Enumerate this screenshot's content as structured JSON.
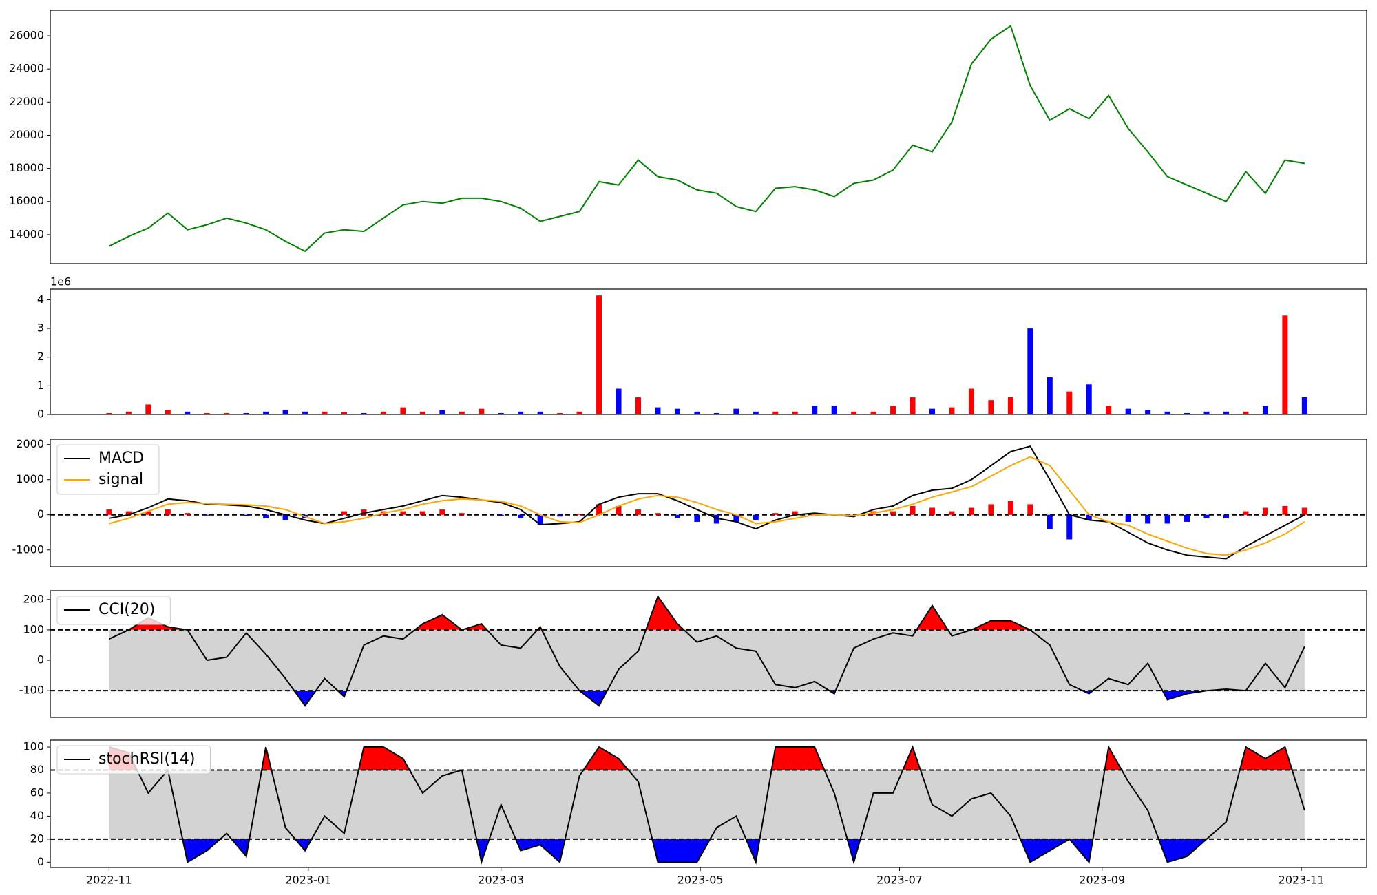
{
  "chart_data": [
    {
      "type": "line",
      "x": [
        0,
        6,
        12,
        18,
        24,
        30,
        36,
        42,
        48,
        54,
        60,
        66,
        72,
        78,
        84,
        90,
        96,
        102,
        108,
        114,
        120,
        126,
        132,
        138,
        144,
        150,
        156,
        162,
        168,
        174,
        180,
        186,
        192,
        198,
        204,
        210,
        216,
        222,
        228,
        234,
        240,
        246,
        252,
        258,
        264,
        270,
        276,
        282,
        288,
        294,
        300,
        306,
        312,
        318,
        324,
        330,
        336,
        342,
        348,
        354,
        360,
        366
      ],
      "xlim": [
        -18,
        385
      ],
      "ylim": [
        12250,
        27540
      ],
      "yticks": [
        14000,
        16000,
        18000,
        20000,
        22000,
        24000,
        26000
      ],
      "series": [
        {
          "color": "#008000",
          "values": [
            13300,
            13900,
            14400,
            15300,
            14300,
            14600,
            15000,
            14700,
            14300,
            13600,
            13000,
            14100,
            14300,
            14200,
            15000,
            15800,
            16000,
            15900,
            16200,
            16200,
            16000,
            15600,
            14800,
            15100,
            15400,
            17200,
            17000,
            18500,
            17500,
            17300,
            16700,
            16500,
            15700,
            15400,
            16800,
            16900,
            16700,
            16300,
            17100,
            17300,
            17900,
            19400,
            19000,
            20800,
            24300,
            25800,
            26600,
            23000,
            20900,
            21600,
            21000,
            22400,
            20400,
            19000,
            17500,
            17000,
            16500,
            16000,
            17800,
            16500,
            18500,
            18300
          ]
        }
      ]
    },
    {
      "type": "bar",
      "x": [
        0,
        6,
        12,
        18,
        24,
        30,
        36,
        42,
        48,
        54,
        60,
        66,
        72,
        78,
        84,
        90,
        96,
        102,
        108,
        114,
        120,
        126,
        132,
        138,
        144,
        150,
        156,
        162,
        168,
        174,
        180,
        186,
        192,
        198,
        204,
        210,
        216,
        222,
        228,
        234,
        240,
        246,
        252,
        258,
        264,
        270,
        276,
        282,
        288,
        294,
        300,
        306,
        312,
        318,
        324,
        330,
        336,
        342,
        348,
        354,
        360,
        366
      ],
      "xlim": [
        -18,
        385
      ],
      "ylim": [
        0,
        4.37
      ],
      "yticks": [
        0,
        1,
        2,
        3,
        4
      ],
      "offset_label": "1e6",
      "up_color": "red",
      "down_color": "blue",
      "values": [
        0.05,
        0.1,
        0.35,
        0.15,
        0.1,
        0.05,
        0.05,
        0.05,
        0.1,
        0.15,
        0.1,
        0.1,
        0.08,
        0.05,
        0.1,
        0.25,
        0.1,
        0.15,
        0.1,
        0.2,
        0.05,
        0.1,
        0.1,
        0.05,
        0.1,
        4.15,
        0.9,
        0.6,
        0.25,
        0.2,
        0.1,
        0.05,
        0.2,
        0.1,
        0.1,
        0.1,
        0.3,
        0.3,
        0.1,
        0.1,
        0.3,
        0.6,
        0.2,
        0.25,
        0.9,
        0.5,
        0.6,
        3.0,
        1.3,
        0.8,
        1.05,
        0.3,
        0.2,
        0.15,
        0.1,
        0.05,
        0.1,
        0.1,
        0.1,
        0.3,
        3.45,
        0.6
      ]
    },
    {
      "type": "macd",
      "x": [
        0,
        6,
        12,
        18,
        24,
        30,
        36,
        42,
        48,
        54,
        60,
        66,
        72,
        78,
        84,
        90,
        96,
        102,
        108,
        114,
        120,
        126,
        132,
        138,
        144,
        150,
        156,
        162,
        168,
        174,
        180,
        186,
        192,
        198,
        204,
        210,
        216,
        222,
        228,
        234,
        240,
        246,
        252,
        258,
        264,
        270,
        276,
        282,
        288,
        294,
        300,
        306,
        312,
        318,
        324,
        330,
        336,
        342,
        348,
        354,
        360,
        366
      ],
      "xlim": [
        -18,
        385
      ],
      "ylim": [
        -1475,
        2150
      ],
      "yticks": [
        -1000,
        0,
        1000,
        2000
      ],
      "hlines": [
        0
      ],
      "legend": "upper left",
      "series": [
        {
          "name": "MACD",
          "color": "black",
          "values": [
            -100,
            0,
            200,
            450,
            400,
            300,
            280,
            250,
            150,
            0,
            -150,
            -250,
            -100,
            50,
            150,
            250,
            400,
            550,
            500,
            420,
            350,
            150,
            -280,
            -250,
            -200,
            300,
            500,
            600,
            600,
            400,
            150,
            -100,
            -200,
            -400,
            -150,
            0,
            50,
            0,
            -50,
            150,
            250,
            550,
            700,
            750,
            1000,
            1400,
            1800,
            1950,
            1000,
            0,
            -150,
            -200,
            -500,
            -800,
            -1000,
            -1150,
            -1200,
            -1250,
            -900,
            -600,
            -300,
            0
          ]
        },
        {
          "name": "signal",
          "color": "orange",
          "values": [
            -250,
            -100,
            100,
            300,
            350,
            320,
            300,
            280,
            250,
            150,
            -50,
            -250,
            -200,
            -100,
            50,
            150,
            300,
            400,
            450,
            420,
            380,
            250,
            0,
            -200,
            -220,
            0,
            250,
            450,
            550,
            500,
            350,
            150,
            0,
            -250,
            -200,
            -100,
            0,
            0,
            -20,
            50,
            150,
            300,
            500,
            650,
            800,
            1100,
            1400,
            1650,
            1400,
            700,
            0,
            -200,
            -300,
            -550,
            -750,
            -950,
            -1100,
            -1150,
            -1000,
            -800,
            -550,
            -200
          ]
        }
      ],
      "histogram": {
        "up_color": "red",
        "down_color": "blue",
        "values": [
          150,
          100,
          100,
          150,
          50,
          -20,
          -20,
          -30,
          -100,
          -150,
          -100,
          0,
          100,
          150,
          100,
          100,
          100,
          150,
          50,
          0,
          -30,
          -100,
          -280,
          -50,
          20,
          300,
          250,
          150,
          50,
          -100,
          -200,
          -250,
          -200,
          -150,
          50,
          100,
          50,
          0,
          -30,
          100,
          100,
          250,
          200,
          100,
          200,
          300,
          400,
          300,
          -400,
          -700,
          -150,
          0,
          -200,
          -250,
          -250,
          -200,
          -100,
          -100,
          100,
          200,
          250,
          200
        ]
      }
    },
    {
      "type": "oscillator",
      "x": [
        0,
        6,
        12,
        18,
        24,
        30,
        36,
        42,
        48,
        54,
        60,
        66,
        72,
        78,
        84,
        90,
        96,
        102,
        108,
        114,
        120,
        126,
        132,
        138,
        144,
        150,
        156,
        162,
        168,
        174,
        180,
        186,
        192,
        198,
        204,
        210,
        216,
        222,
        228,
        234,
        240,
        246,
        252,
        258,
        264,
        270,
        276,
        282,
        288,
        294,
        300,
        306,
        312,
        318,
        324,
        330,
        336,
        342,
        348,
        354,
        360,
        366
      ],
      "xlim": [
        -18,
        385
      ],
      "ylim": [
        -188,
        229
      ],
      "yticks": [
        -100,
        0,
        100,
        200
      ],
      "hlines": [
        -100,
        100
      ],
      "legend": "upper left",
      "band_color": "lightgrey",
      "over_color": "red",
      "under_color": "blue",
      "series": [
        {
          "name": "CCI(20)",
          "color": "black",
          "values": [
            70,
            100,
            140,
            110,
            100,
            0,
            10,
            90,
            20,
            -60,
            -150,
            -60,
            -120,
            50,
            80,
            70,
            120,
            150,
            100,
            120,
            50,
            40,
            110,
            -20,
            -100,
            -150,
            -30,
            30,
            210,
            120,
            60,
            80,
            40,
            30,
            -80,
            -90,
            -70,
            -110,
            40,
            70,
            90,
            80,
            180,
            80,
            100,
            130,
            130,
            100,
            50,
            -80,
            -110,
            -60,
            -80,
            -10,
            -130,
            -110,
            -100,
            -95,
            -100,
            -10,
            -90,
            45
          ]
        }
      ]
    },
    {
      "type": "oscillator",
      "x": [
        0,
        6,
        12,
        18,
        24,
        30,
        36,
        42,
        48,
        54,
        60,
        66,
        72,
        78,
        84,
        90,
        96,
        102,
        108,
        114,
        120,
        126,
        132,
        138,
        144,
        150,
        156,
        162,
        168,
        174,
        180,
        186,
        192,
        198,
        204,
        210,
        216,
        222,
        228,
        234,
        240,
        246,
        252,
        258,
        264,
        270,
        276,
        282,
        288,
        294,
        300,
        306,
        312,
        318,
        324,
        330,
        336,
        342,
        348,
        354,
        360,
        366
      ],
      "xlim": [
        -18,
        385
      ],
      "ylim": [
        -4.6,
        106
      ],
      "yticks": [
        0,
        20,
        40,
        60,
        80,
        100
      ],
      "hlines": [
        20,
        80
      ],
      "legend": "upper left",
      "band_color": "lightgrey",
      "over_color": "red",
      "under_color": "blue",
      "xticks": [
        {
          "value": 0,
          "label": "2022-11"
        },
        {
          "value": 61,
          "label": "2023-01"
        },
        {
          "value": 120,
          "label": "2023-03"
        },
        {
          "value": 181,
          "label": "2023-05"
        },
        {
          "value": 242,
          "label": "2023-07"
        },
        {
          "value": 304,
          "label": "2023-09"
        },
        {
          "value": 365,
          "label": "2023-11"
        }
      ],
      "series": [
        {
          "name": "stochRSI(14)",
          "color": "black",
          "values": [
            100,
            95,
            60,
            80,
            0,
            10,
            25,
            5,
            100,
            30,
            10,
            40,
            25,
            100,
            100,
            90,
            60,
            75,
            80,
            0,
            50,
            10,
            15,
            0,
            75,
            100,
            90,
            70,
            0,
            0,
            0,
            30,
            40,
            0,
            100,
            100,
            100,
            60,
            0,
            60,
            60,
            100,
            50,
            40,
            55,
            60,
            40,
            0,
            10,
            20,
            0,
            100,
            70,
            45,
            0,
            5,
            20,
            35,
            100,
            90,
            100,
            45
          ]
        }
      ]
    }
  ]
}
